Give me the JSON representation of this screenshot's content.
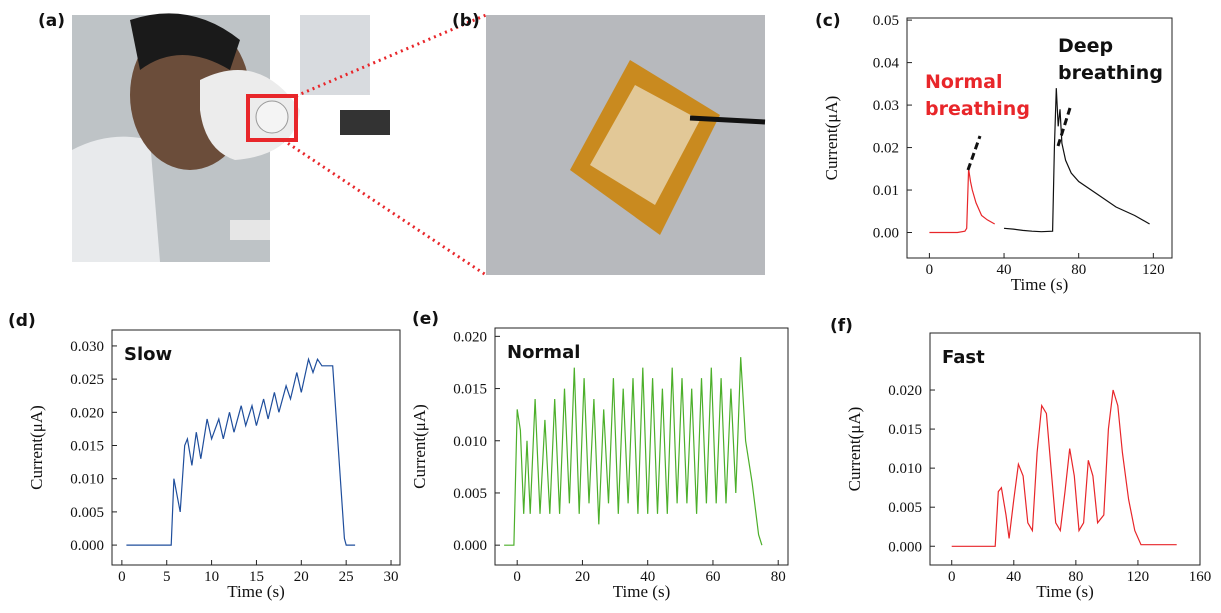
{
  "photos": [
    {
      "label": "(a)"
    },
    {
      "label": "(b)"
    }
  ],
  "chart_data": [
    {
      "type": "line",
      "label": "(c)",
      "x_label": "Time (s)",
      "y_label": "Current(μA)",
      "xlim": [
        -12,
        130
      ],
      "ylim": [
        -0.006,
        0.0505
      ],
      "xticks": [
        0,
        40,
        80,
        120
      ],
      "yticks": [
        {
          "value": 0,
          "label": "0.00"
        },
        {
          "value": 0.01,
          "label": "0.01"
        },
        {
          "value": 0.02,
          "label": "0.02"
        },
        {
          "value": 0.03,
          "label": "0.03"
        },
        {
          "value": 0.04,
          "label": "0.04"
        },
        {
          "value": 0.05,
          "label": "0.05"
        }
      ],
      "annotations": [
        {
          "lines": [
            "Normal",
            "breathing"
          ],
          "color": "#e8262a"
        },
        {
          "lines": [
            "Deep",
            "breathing"
          ],
          "color": "#111111"
        }
      ],
      "series": [
        {
          "color": "#e8262a",
          "x": [
            0,
            5,
            10,
            15,
            19,
            20,
            21,
            22,
            23,
            25,
            28,
            31,
            35
          ],
          "values": [
            0,
            0,
            0,
            0,
            0.0003,
            0.001,
            0.015,
            0.012,
            0.01,
            0.007,
            0.004,
            0.003,
            0.002
          ]
        },
        {
          "color": "#111111",
          "x": [
            40,
            45,
            50,
            55,
            60,
            66,
            67,
            68,
            69,
            70,
            71,
            73,
            76,
            80,
            90,
            100,
            110,
            118
          ],
          "values": [
            0.001,
            0.0008,
            0.0005,
            0.0003,
            0.0002,
            0.0003,
            0.02,
            0.034,
            0.025,
            0.029,
            0.021,
            0.017,
            0.014,
            0.012,
            0.009,
            0.006,
            0.004,
            0.002
          ]
        }
      ]
    },
    {
      "type": "line",
      "label": "(d)",
      "title": "Slow",
      "x_label": "Time (s)",
      "y_label": "Current(μA)",
      "xlim": [
        -1.1,
        31
      ],
      "ylim": [
        -0.003,
        0.0324
      ],
      "xticks": [
        0,
        5,
        10,
        15,
        20,
        25,
        30
      ],
      "yticks": [
        {
          "value": 0,
          "label": "0.000"
        },
        {
          "value": 0.005,
          "label": "0.005"
        },
        {
          "value": 0.01,
          "label": "0.010"
        },
        {
          "value": 0.015,
          "label": "0.015"
        },
        {
          "value": 0.02,
          "label": "0.020"
        },
        {
          "value": 0.025,
          "label": "0.025"
        },
        {
          "value": 0.03,
          "label": "0.030"
        }
      ],
      "series": [
        {
          "color": "#1f4e9c",
          "x": [
            0.5,
            5.5,
            5.8,
            6.5,
            7,
            7.3,
            7.8,
            8.3,
            8.8,
            9.5,
            10,
            10.8,
            11.3,
            12,
            12.5,
            13.3,
            13.8,
            14.5,
            15,
            15.8,
            16.3,
            17,
            17.5,
            18.3,
            18.8,
            19.5,
            20,
            20.8,
            21.3,
            21.8,
            22.3,
            23,
            23.5,
            24.8,
            25,
            26
          ],
          "values": [
            0,
            0,
            0.01,
            0.005,
            0.015,
            0.016,
            0.012,
            0.017,
            0.013,
            0.019,
            0.016,
            0.019,
            0.016,
            0.02,
            0.017,
            0.021,
            0.018,
            0.021,
            0.018,
            0.022,
            0.019,
            0.023,
            0.02,
            0.024,
            0.022,
            0.026,
            0.023,
            0.028,
            0.026,
            0.028,
            0.027,
            0.027,
            0.027,
            0.001,
            0,
            0
          ]
        }
      ]
    },
    {
      "type": "line",
      "label": "(e)",
      "title": "Normal",
      "x_label": "Time (s)",
      "y_label": "Current(μA)",
      "xlim": [
        -6.8,
        83
      ],
      "ylim": [
        -0.0019,
        0.0208
      ],
      "xticks": [
        0,
        20,
        40,
        60,
        80
      ],
      "yticks": [
        {
          "value": 0,
          "label": "0.000"
        },
        {
          "value": 0.005,
          "label": "0.005"
        },
        {
          "value": 0.01,
          "label": "0.010"
        },
        {
          "value": 0.015,
          "label": "0.015"
        },
        {
          "value": 0.02,
          "label": "0.020"
        }
      ],
      "series": [
        {
          "color": "#4caf2a",
          "x": [
            -4,
            -1,
            0,
            1,
            2,
            3,
            4,
            5.5,
            7,
            8.5,
            10,
            11.5,
            13,
            14.5,
            16,
            17.5,
            19,
            20.5,
            22,
            23.5,
            25,
            26.5,
            28,
            29.5,
            31,
            32.5,
            34,
            35.5,
            37,
            38.5,
            40,
            41.5,
            43,
            44.5,
            46,
            47.5,
            49,
            50.5,
            52,
            53.5,
            55,
            56.5,
            58,
            59.5,
            61,
            62.5,
            64,
            65.5,
            67,
            68.5,
            70,
            72,
            74,
            75
          ],
          "values": [
            0,
            0,
            0.013,
            0.011,
            0.003,
            0.01,
            0.003,
            0.014,
            0.003,
            0.012,
            0.003,
            0.014,
            0.003,
            0.015,
            0.004,
            0.017,
            0.003,
            0.016,
            0.004,
            0.014,
            0.002,
            0.013,
            0.004,
            0.016,
            0.003,
            0.015,
            0.004,
            0.016,
            0.003,
            0.017,
            0.003,
            0.016,
            0.003,
            0.015,
            0.003,
            0.017,
            0.004,
            0.016,
            0.004,
            0.015,
            0.003,
            0.016,
            0.004,
            0.017,
            0.004,
            0.016,
            0.004,
            0.015,
            0.005,
            0.018,
            0.01,
            0.006,
            0.001,
            0
          ]
        }
      ]
    },
    {
      "type": "line",
      "label": "(f)",
      "title": "Fast",
      "x_label": "Time (s)",
      "y_label": "Current(μA)",
      "xlim": [
        -14,
        160
      ],
      "ylim": [
        -0.0024,
        0.0273
      ],
      "xticks": [
        0,
        40,
        80,
        120,
        160
      ],
      "yticks": [
        {
          "value": 0,
          "label": "0.000"
        },
        {
          "value": 0.005,
          "label": "0.005"
        },
        {
          "value": 0.01,
          "label": "0.010"
        },
        {
          "value": 0.015,
          "label": "0.015"
        },
        {
          "value": 0.02,
          "label": "0.020"
        }
      ],
      "series": [
        {
          "color": "#e8262a",
          "x": [
            0,
            28,
            30,
            32,
            35,
            37,
            40,
            43,
            46,
            49,
            52,
            55,
            58,
            61,
            64,
            67,
            70,
            73,
            76,
            79,
            82,
            85,
            88,
            91,
            94,
            98,
            101,
            104,
            107,
            110,
            114,
            118,
            122,
            145
          ],
          "values": [
            0,
            0,
            0.007,
            0.0075,
            0.004,
            0.001,
            0.006,
            0.0105,
            0.009,
            0.003,
            0.002,
            0.012,
            0.018,
            0.017,
            0.01,
            0.003,
            0.002,
            0.007,
            0.0125,
            0.009,
            0.002,
            0.003,
            0.011,
            0.009,
            0.003,
            0.004,
            0.015,
            0.02,
            0.018,
            0.012,
            0.006,
            0.002,
            0.0002,
            0.0002
          ]
        }
      ]
    }
  ]
}
